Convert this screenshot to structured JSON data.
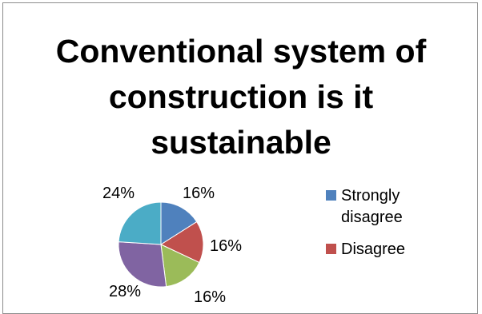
{
  "chart_data": {
    "type": "pie",
    "title": "Conventional system of construction is it sustainable",
    "slices": [
      {
        "label": "Strongly disagree",
        "value": 16,
        "data_label": "16%",
        "color": "#4f81bd"
      },
      {
        "label": "Disagree",
        "value": 16,
        "data_label": "16%",
        "color": "#c0504d"
      },
      {
        "label": "",
        "value": 16,
        "data_label": "16%",
        "color": "#9bbb59"
      },
      {
        "label": "",
        "value": 28,
        "data_label": "28%",
        "color": "#8064a2"
      },
      {
        "label": "",
        "value": 24,
        "data_label": "24%",
        "color": "#4bacc6"
      }
    ],
    "legend": {
      "placement": "right",
      "entries": [
        {
          "label": "Strongly\ndisagree",
          "color": "#4f81bd"
        },
        {
          "label": "Disagree",
          "color": "#c0504d"
        }
      ]
    }
  }
}
